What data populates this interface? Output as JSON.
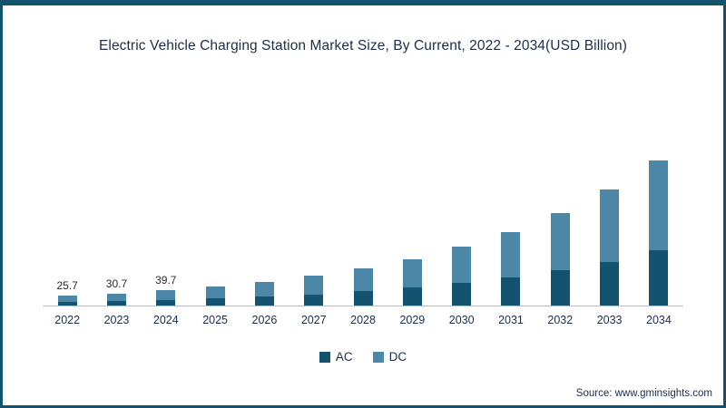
{
  "source": "Source: www.gminsights.com",
  "chart_data": {
    "type": "bar",
    "stacked": true,
    "title": "Electric Vehicle Charging Station Market Size, By Current, 2022 - 2034(USD Billion)",
    "xlabel": "",
    "ylabel": "",
    "legend_position": "bottom",
    "grid": false,
    "categories": [
      "2022",
      "2023",
      "2024",
      "2025",
      "2026",
      "2027",
      "2028",
      "2029",
      "2030",
      "2031",
      "2032",
      "2033",
      "2034"
    ],
    "series": [
      {
        "name": "AC",
        "color": "#14536f",
        "values": [
          9.8,
          11.7,
          15.1,
          18.9,
          23.8,
          29.8,
          37.4,
          46.9,
          58.8,
          73.8,
          92.5,
          116.1,
          145.6
        ]
      },
      {
        "name": "DC",
        "color": "#4d87a8",
        "values": [
          15.9,
          19.0,
          24.6,
          30.9,
          38.7,
          48.6,
          60.9,
          76.4,
          95.9,
          120.3,
          151.0,
          189.3,
          237.5
        ]
      }
    ],
    "totals": [
      25.7,
      30.7,
      39.7,
      49.8,
      62.5,
      78.4,
      98.3,
      123.3,
      154.7,
      194.1,
      243.5,
      305.4,
      383.1
    ],
    "data_labels": [
      "25.7",
      "30.7",
      "39.7",
      "",
      "",
      "",
      "",
      "",
      "",
      "",
      "",
      "",
      ""
    ]
  }
}
